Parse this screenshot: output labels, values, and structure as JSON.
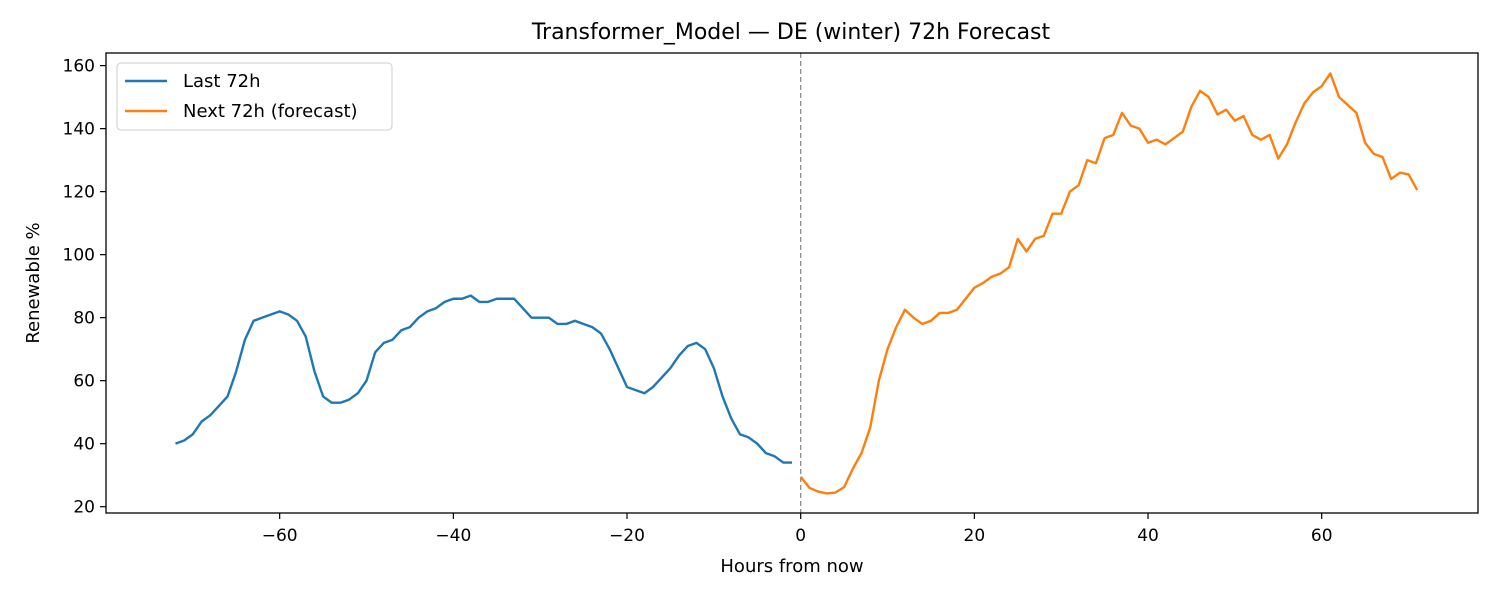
{
  "chart_data": {
    "type": "line",
    "title": "Transformer_Model — DE (winter) 72h Forecast",
    "xlabel": "Hours from now",
    "ylabel": "Renewable %",
    "xlim": [
      -80,
      78
    ],
    "ylim": [
      18,
      164
    ],
    "xticks": [
      -60,
      -40,
      -20,
      0,
      20,
      40,
      60
    ],
    "xtick_labels": [
      "−60",
      "−40",
      "−20",
      "0",
      "20",
      "40",
      "60"
    ],
    "yticks": [
      20,
      40,
      60,
      80,
      100,
      120,
      140,
      160
    ],
    "ytick_labels": [
      "20",
      "40",
      "60",
      "80",
      "100",
      "120",
      "140",
      "160"
    ],
    "grid": false,
    "legend_position": "top-left",
    "reference_line": {
      "x": 0,
      "style": "dashed",
      "color": "#8c8c8c"
    },
    "series": [
      {
        "name": "Last 72h",
        "color": "#1f77b4",
        "x": [
          -72,
          -71,
          -70,
          -69,
          -68,
          -67,
          -66,
          -65,
          -64,
          -63,
          -62,
          -61,
          -60,
          -59,
          -58,
          -57,
          -56,
          -55,
          -54,
          -53,
          -52,
          -51,
          -50,
          -49,
          -48,
          -47,
          -46,
          -45,
          -44,
          -43,
          -42,
          -41,
          -40,
          -39,
          -38,
          -37,
          -36,
          -35,
          -34,
          -33,
          -32,
          -31,
          -30,
          -29,
          -28,
          -27,
          -26,
          -25,
          -24,
          -23,
          -22,
          -21,
          -20,
          -19,
          -18,
          -17,
          -16,
          -15,
          -14,
          -13,
          -12,
          -11,
          -10,
          -9,
          -8,
          -7,
          -6,
          -5,
          -4,
          -3,
          -2,
          -1
        ],
        "y": [
          40,
          41,
          43,
          47,
          49,
          52,
          55,
          63,
          73,
          79,
          80,
          81,
          82,
          81,
          79,
          74,
          63,
          55,
          53,
          53,
          54,
          56,
          60,
          69,
          72,
          73,
          76,
          77,
          80,
          82,
          83,
          85,
          86,
          86,
          87,
          85,
          85,
          86,
          86,
          86,
          83,
          80,
          80,
          80,
          78,
          78,
          79,
          78,
          77,
          75,
          70,
          64,
          58,
          57,
          56,
          58,
          61,
          64,
          68,
          71,
          72,
          70,
          64,
          55,
          48,
          43,
          42,
          40,
          37,
          36,
          34,
          34
        ]
      },
      {
        "name": "Next 72h (forecast)",
        "color": "#ff7f0e",
        "x": [
          0,
          1,
          2,
          3,
          4,
          5,
          6,
          7,
          8,
          9,
          10,
          11,
          12,
          13,
          14,
          15,
          16,
          17,
          18,
          19,
          20,
          21,
          22,
          23,
          24,
          25,
          26,
          27,
          28,
          29,
          30,
          31,
          32,
          33,
          34,
          35,
          36,
          37,
          38,
          39,
          40,
          41,
          42,
          43,
          44,
          45,
          46,
          47,
          48,
          49,
          50,
          51,
          52,
          53,
          54,
          55,
          56,
          57,
          58,
          59,
          60,
          61,
          62,
          63,
          64,
          65,
          66,
          67,
          68,
          69,
          70,
          71
        ],
        "y": [
          29.5,
          26,
          24.8,
          24.2,
          24.5,
          26.2,
          32,
          37,
          45,
          60,
          70,
          77,
          82.5,
          80,
          78,
          79,
          81.5,
          81.5,
          82.5,
          86,
          89.5,
          91,
          93,
          94,
          96,
          105,
          101,
          105,
          106,
          113,
          113,
          120,
          122,
          130,
          129,
          137,
          138,
          145,
          141,
          140,
          135.5,
          136.5,
          135,
          137,
          139,
          147,
          152,
          150,
          144.5,
          146,
          142.5,
          144,
          138,
          136.5,
          138,
          130.5,
          135,
          142,
          148,
          151.5,
          153.5,
          157.5,
          150,
          147.5,
          145,
          135.5,
          132,
          131,
          124,
          126,
          125.5,
          120.5
        ]
      }
    ]
  }
}
